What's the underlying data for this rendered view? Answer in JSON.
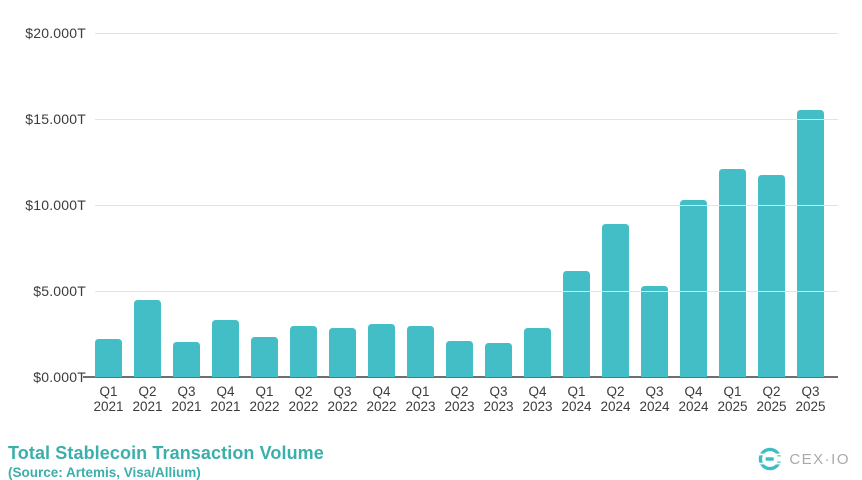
{
  "chart_data": {
    "type": "bar",
    "title": "Total Stablecoin Transaction Volume",
    "source_note": "(Source: Artemis, Visa/Allium)",
    "categories": [
      "Q1 2021",
      "Q2 2021",
      "Q3 2021",
      "Q4 2021",
      "Q1 2022",
      "Q2 2022",
      "Q3 2022",
      "Q4 2022",
      "Q1 2023",
      "Q2 2023",
      "Q3 2023",
      "Q4 2023",
      "Q1 2024",
      "Q2 2024",
      "Q3 2024",
      "Q4 2024",
      "Q1 2025",
      "Q2 2025",
      "Q3 2025"
    ],
    "values": [
      2.2,
      4.5,
      2.05,
      3.3,
      2.3,
      2.95,
      2.85,
      3.1,
      2.95,
      2.1,
      2.0,
      2.85,
      6.15,
      8.9,
      5.3,
      10.3,
      12.1,
      11.75,
      15.55
    ],
    "values_unit_hint": "T (trillions USD, read from y-axis tick format)",
    "y_ticks": [
      "$20.000T",
      "$15.000T",
      "$10.000T",
      "$5.000T",
      "$0.000T"
    ],
    "ylim": [
      0,
      20
    ],
    "grid": "horizontal-only",
    "legend": "none",
    "bar_color": "#43bec6"
  },
  "branding": {
    "logo_text": "CEX·IO"
  },
  "colors": {
    "bar": "#43bec6",
    "title": "#3bafab",
    "axis_text": "#3c3c3c",
    "gridline": "#e3e3e3",
    "baseline": "#6f6f6f",
    "logo_text": "#a8aaad",
    "background": "#ffffff"
  }
}
